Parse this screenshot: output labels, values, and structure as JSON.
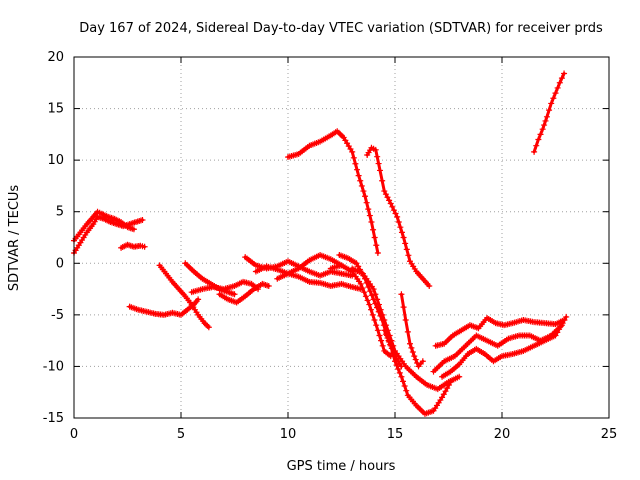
{
  "chart_data": {
    "type": "scatter",
    "title": "Day 167 of 2024, Sidereal Day-to-day VTEC variation (SDTVAR) for receiver prds",
    "xlabel": "GPS time / hours",
    "ylabel": "SDTVAR / TECUs",
    "xlim": [
      0,
      25
    ],
    "ylim": [
      -15,
      20
    ],
    "xticks": [
      0,
      5,
      10,
      15,
      20,
      25
    ],
    "yticks": [
      -15,
      -10,
      -5,
      0,
      5,
      10,
      15,
      20
    ],
    "grid": true,
    "marker": "plus",
    "color": "#ff0000",
    "series": [
      {
        "x": [
          0.0,
          0.3,
          0.6,
          0.9,
          1.1,
          1.4,
          1.7,
          2.0,
          2.3,
          2.6,
          2.9,
          3.2
        ],
        "y": [
          1.0,
          2.0,
          3.0,
          3.8,
          4.5,
          4.3,
          4.0,
          3.8,
          3.6,
          3.8,
          4.0,
          4.2
        ]
      },
      {
        "x": [
          0.0,
          0.3,
          0.6,
          0.9,
          1.1,
          1.3,
          1.6,
          1.9,
          2.2,
          2.5,
          2.8
        ],
        "y": [
          2.2,
          3.0,
          3.8,
          4.5,
          5.0,
          4.8,
          4.5,
          4.3,
          4.0,
          3.5,
          3.3
        ]
      },
      {
        "x": [
          2.2,
          2.5,
          2.8,
          3.1,
          3.3
        ],
        "y": [
          1.5,
          1.8,
          1.6,
          1.7,
          1.6
        ]
      },
      {
        "x": [
          2.6,
          3.0,
          3.4,
          3.8,
          4.2,
          4.6,
          5.0,
          5.3,
          5.6,
          5.8
        ],
        "y": [
          -4.2,
          -4.5,
          -4.7,
          -4.9,
          -5.0,
          -4.8,
          -5.0,
          -4.5,
          -4.0,
          -3.5
        ]
      },
      {
        "x": [
          4.0,
          4.3,
          4.6,
          4.9,
          5.2,
          5.5,
          5.8,
          6.1,
          6.3
        ],
        "y": [
          -0.2,
          -1.0,
          -1.8,
          -2.5,
          -3.2,
          -4.0,
          -5.0,
          -5.8,
          -6.2
        ]
      },
      {
        "x": [
          5.2,
          5.6,
          6.0,
          6.4,
          6.8,
          7.2,
          7.5
        ],
        "y": [
          0.0,
          -0.8,
          -1.5,
          -2.0,
          -2.5,
          -2.8,
          -3.0
        ]
      },
      {
        "x": [
          5.5,
          6.0,
          6.5,
          7.0,
          7.5,
          7.9,
          8.3,
          8.6
        ],
        "y": [
          -2.8,
          -2.5,
          -2.3,
          -2.5,
          -2.2,
          -1.8,
          -2.0,
          -2.5
        ]
      },
      {
        "x": [
          6.8,
          7.2,
          7.6,
          8.0,
          8.4,
          8.8,
          9.1
        ],
        "y": [
          -3.0,
          -3.5,
          -3.8,
          -3.2,
          -2.5,
          -2.0,
          -2.2
        ]
      },
      {
        "x": [
          8.0,
          8.5,
          9.0,
          9.5,
          10.0,
          10.5,
          11.0,
          11.5,
          12.0,
          12.5,
          13.0
        ],
        "y": [
          0.6,
          -0.2,
          -0.5,
          -0.3,
          0.2,
          -0.3,
          -0.8,
          -1.2,
          -0.8,
          -1.0,
          -1.2
        ]
      },
      {
        "x": [
          8.5,
          9.0,
          9.5,
          10.0,
          10.5,
          11.0,
          11.5,
          12.0,
          12.5
        ],
        "y": [
          -0.8,
          -0.3,
          -0.6,
          -1.0,
          -0.5,
          0.3,
          0.8,
          0.4,
          -0.2
        ]
      },
      {
        "x": [
          9.5,
          10.0,
          10.5,
          11.0,
          11.5,
          12.0,
          12.5,
          13.0,
          13.4
        ],
        "y": [
          -1.5,
          -1.0,
          -1.3,
          -1.8,
          -1.9,
          -2.2,
          -2.0,
          -2.3,
          -2.5
        ]
      },
      {
        "x": [
          10.0,
          10.5,
          11.0,
          11.5,
          12.0,
          12.3,
          12.6,
          13.0,
          13.3,
          13.6,
          13.9,
          14.2
        ],
        "y": [
          10.3,
          10.6,
          11.4,
          11.8,
          12.4,
          12.8,
          12.2,
          10.8,
          8.5,
          6.5,
          4.0,
          1.0
        ]
      },
      {
        "x": [
          13.7,
          13.9,
          14.1,
          14.3,
          14.5,
          14.8,
          15.1,
          15.4,
          15.7,
          16.0,
          16.3,
          16.6
        ],
        "y": [
          10.5,
          11.2,
          11.0,
          9.0,
          7.0,
          5.8,
          4.5,
          2.5,
          0.2,
          -0.8,
          -1.5,
          -2.2
        ]
      },
      {
        "x": [
          12.4,
          12.8,
          13.2,
          13.6,
          14.0,
          14.4,
          14.7,
          15.0,
          15.3
        ],
        "y": [
          0.8,
          0.5,
          0.0,
          -1.5,
          -3.5,
          -5.5,
          -7.5,
          -9.0,
          -10.0
        ]
      },
      {
        "x": [
          12.0,
          12.5,
          13.0,
          13.4,
          13.8,
          14.2,
          14.5,
          14.8
        ],
        "y": [
          -0.5,
          -0.2,
          -0.8,
          -2.0,
          -4.0,
          -6.5,
          -8.5,
          -9.0
        ]
      },
      {
        "x": [
          13.0,
          13.5,
          14.0,
          14.5,
          15.0,
          15.5,
          16.0,
          16.5,
          17.0,
          17.5,
          18.0
        ],
        "y": [
          -0.5,
          -1.0,
          -2.5,
          -5.5,
          -8.5,
          -10.0,
          -11.0,
          -11.8,
          -12.2,
          -11.5,
          -11.0
        ]
      },
      {
        "x": [
          14.5,
          14.8,
          15.0,
          15.3,
          15.6,
          16.0,
          16.4,
          16.8,
          17.2,
          17.6
        ],
        "y": [
          -6.5,
          -8.0,
          -9.5,
          -11.0,
          -12.8,
          -13.8,
          -14.6,
          -14.3,
          -13.0,
          -11.5
        ]
      },
      {
        "x": [
          15.3,
          15.5,
          15.7,
          15.9,
          16.1,
          16.3
        ],
        "y": [
          -3.0,
          -5.5,
          -7.8,
          -9.0,
          -10.0,
          -9.5
        ]
      },
      {
        "x": [
          16.9,
          17.3,
          17.7,
          18.1,
          18.5,
          18.9,
          19.3,
          19.7,
          20.1,
          20.5,
          21.0,
          21.5,
          22.0,
          22.5,
          22.9
        ],
        "y": [
          -8.0,
          -7.8,
          -7.0,
          -6.5,
          -6.0,
          -6.3,
          -5.3,
          -5.8,
          -6.0,
          -5.8,
          -5.5,
          -5.7,
          -5.8,
          -5.9,
          -5.5
        ]
      },
      {
        "x": [
          16.8,
          17.3,
          17.8,
          18.3,
          18.8,
          19.3,
          19.8,
          20.3,
          20.8,
          21.3,
          21.8,
          22.3,
          22.8
        ],
        "y": [
          -10.5,
          -9.5,
          -9.0,
          -8.0,
          -7.0,
          -7.5,
          -8.0,
          -7.3,
          -7.0,
          -7.0,
          -7.5,
          -7.0,
          -6.0
        ]
      },
      {
        "x": [
          17.2,
          17.6,
          18.0,
          18.4,
          18.8,
          19.2,
          19.6,
          20.0,
          20.5,
          21.0,
          21.5,
          22.0,
          22.5,
          23.0
        ],
        "y": [
          -11.0,
          -10.5,
          -9.8,
          -8.8,
          -8.3,
          -8.8,
          -9.5,
          -9.0,
          -8.8,
          -8.5,
          -8.0,
          -7.5,
          -7.0,
          -5.2
        ]
      },
      {
        "x": [
          21.5,
          21.7,
          21.9,
          22.1,
          22.3,
          22.5,
          22.7,
          22.9
        ],
        "y": [
          10.8,
          12.0,
          13.0,
          14.2,
          15.5,
          16.5,
          17.5,
          18.4
        ]
      }
    ]
  }
}
